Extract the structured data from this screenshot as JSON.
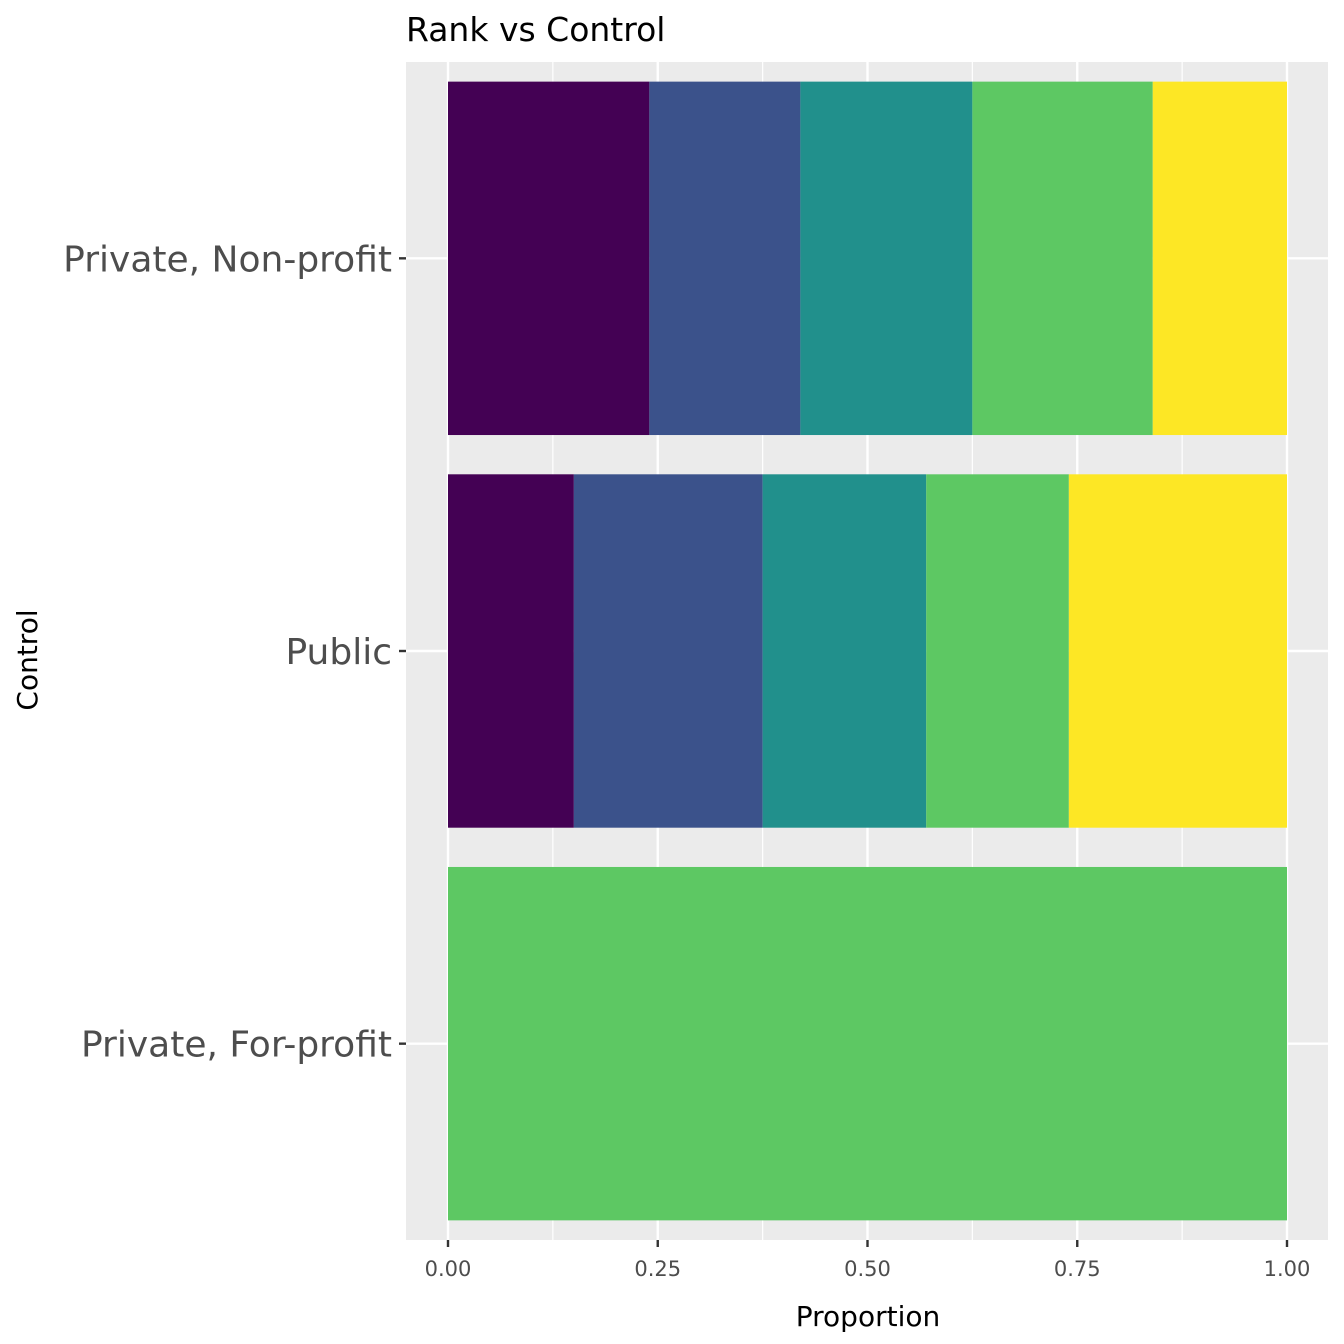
{
  "chart_data": {
    "type": "bar",
    "orientation": "horizontal",
    "stacked": true,
    "title": "Rank vs Control",
    "xlabel": "Proportion",
    "ylabel": "Control",
    "xlim": [
      0,
      1
    ],
    "x_ticks": [
      "0.00",
      "0.25",
      "0.50",
      "0.75",
      "1.00"
    ],
    "x_tick_values": [
      0,
      0.25,
      0.5,
      0.75,
      1.0
    ],
    "categories": [
      "Private, For-profit",
      "Public",
      "Private, Non-profit"
    ],
    "series": [
      {
        "color": "#440154",
        "values": [
          0,
          0.15,
          0.24
        ]
      },
      {
        "color": "#3b528b",
        "values": [
          0,
          0.225,
          0.18
        ]
      },
      {
        "color": "#21908c",
        "values": [
          0,
          0.195,
          0.205
        ]
      },
      {
        "color": "#5dc863",
        "values": [
          1.0,
          0.17,
          0.215
        ]
      },
      {
        "color": "#fde725",
        "values": [
          0,
          0.26,
          0.16
        ]
      }
    ],
    "grid": true,
    "legend": "none",
    "panel_background": "#ebebeb",
    "gridline_color": "#ffffff",
    "tick_label_color": "#4d4d4d"
  }
}
